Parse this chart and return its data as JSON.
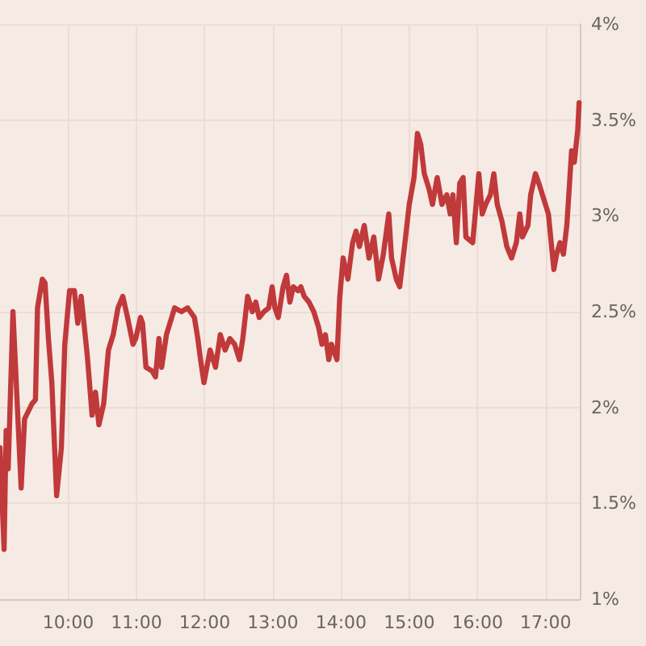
{
  "chart_data": {
    "type": "line",
    "color": "#c0393b",
    "grid": true,
    "xlim": [
      9,
      17.5
    ],
    "xticks": [
      {
        "value": 10,
        "label": "10:00"
      },
      {
        "value": 11,
        "label": "11:00"
      },
      {
        "value": 12,
        "label": "12:00"
      },
      {
        "value": 13,
        "label": "13:00"
      },
      {
        "value": 14,
        "label": "14:00"
      },
      {
        "value": 15,
        "label": "15:00"
      },
      {
        "value": 16,
        "label": "16:00"
      },
      {
        "value": 17,
        "label": "17:00"
      }
    ],
    "ylim": [
      1,
      4
    ],
    "yticks": [
      {
        "value": 1,
        "label": "1%"
      },
      {
        "value": 1.5,
        "label": "1.5%"
      },
      {
        "value": 2,
        "label": "2%"
      },
      {
        "value": 2.5,
        "label": "2.5%"
      },
      {
        "value": 3,
        "label": "3%"
      },
      {
        "value": 3.5,
        "label": "3.5%"
      },
      {
        "value": 4,
        "label": "4%"
      }
    ],
    "x": [
      9.0,
      9.06,
      9.09,
      9.12,
      9.19,
      9.31,
      9.36,
      9.47,
      9.52,
      9.55,
      9.62,
      9.66,
      9.71,
      9.76,
      9.83,
      9.9,
      9.95,
      10.02,
      10.09,
      10.14,
      10.19,
      10.28,
      10.35,
      10.4,
      10.45,
      10.52,
      10.59,
      10.66,
      10.73,
      10.8,
      10.87,
      10.95,
      10.99,
      11.06,
      11.09,
      11.14,
      11.23,
      11.28,
      11.33,
      11.37,
      11.44,
      11.56,
      11.66,
      11.75,
      11.85,
      11.9,
      11.94,
      11.99,
      12.08,
      12.16,
      12.23,
      12.3,
      12.37,
      12.44,
      12.51,
      12.56,
      12.63,
      12.7,
      12.75,
      12.8,
      12.87,
      12.94,
      12.99,
      13.03,
      13.08,
      13.15,
      13.2,
      13.25,
      13.3,
      13.37,
      13.41,
      13.46,
      13.53,
      13.6,
      13.67,
      13.72,
      13.77,
      13.82,
      13.86,
      13.94,
      13.98,
      14.03,
      14.1,
      14.17,
      14.22,
      14.27,
      14.34,
      14.41,
      14.48,
      14.55,
      14.62,
      14.7,
      14.74,
      14.81,
      14.86,
      14.93,
      15.0,
      15.07,
      15.12,
      15.17,
      15.22,
      15.29,
      15.34,
      15.41,
      15.48,
      15.55,
      15.6,
      15.64,
      15.69,
      15.74,
      15.79,
      15.83,
      15.93,
      15.98,
      16.02,
      16.07,
      16.12,
      16.19,
      16.24,
      16.29,
      16.36,
      16.43,
      16.5,
      16.57,
      16.62,
      16.66,
      16.74,
      16.78,
      16.85,
      16.9,
      16.97,
      17.04,
      17.12,
      17.16,
      17.21,
      17.26,
      17.31,
      17.35,
      17.38,
      17.42,
      17.47,
      17.49
    ],
    "values": [
      1.79,
      1.26,
      1.88,
      1.68,
      2.5,
      1.58,
      1.94,
      2.02,
      2.04,
      2.52,
      2.67,
      2.65,
      2.36,
      2.13,
      1.54,
      1.79,
      2.33,
      2.61,
      2.61,
      2.44,
      2.58,
      2.27,
      1.96,
      2.08,
      1.91,
      2.02,
      2.3,
      2.38,
      2.52,
      2.58,
      2.47,
      2.33,
      2.36,
      2.47,
      2.44,
      2.21,
      2.19,
      2.16,
      2.36,
      2.21,
      2.38,
      2.52,
      2.5,
      2.52,
      2.47,
      2.36,
      2.25,
      2.13,
      2.3,
      2.21,
      2.38,
      2.3,
      2.36,
      2.33,
      2.25,
      2.36,
      2.58,
      2.5,
      2.55,
      2.47,
      2.5,
      2.52,
      2.63,
      2.52,
      2.47,
      2.63,
      2.69,
      2.55,
      2.63,
      2.61,
      2.63,
      2.58,
      2.55,
      2.5,
      2.42,
      2.33,
      2.38,
      2.25,
      2.33,
      2.25,
      2.57,
      2.78,
      2.67,
      2.86,
      2.92,
      2.84,
      2.95,
      2.78,
      2.89,
      2.67,
      2.8,
      3.01,
      2.78,
      2.67,
      2.63,
      2.84,
      3.06,
      3.2,
      3.43,
      3.37,
      3.22,
      3.14,
      3.06,
      3.2,
      3.06,
      3.11,
      3.01,
      3.11,
      2.86,
      3.17,
      3.2,
      2.89,
      2.86,
      3.06,
      3.22,
      3.01,
      3.06,
      3.11,
      3.22,
      3.06,
      2.97,
      2.84,
      2.78,
      2.86,
      3.01,
      2.89,
      2.95,
      3.11,
      3.22,
      3.17,
      3.09,
      3.01,
      2.72,
      2.8,
      2.86,
      2.8,
      2.95,
      3.17,
      3.34,
      3.28,
      3.45,
      3.59
    ]
  }
}
